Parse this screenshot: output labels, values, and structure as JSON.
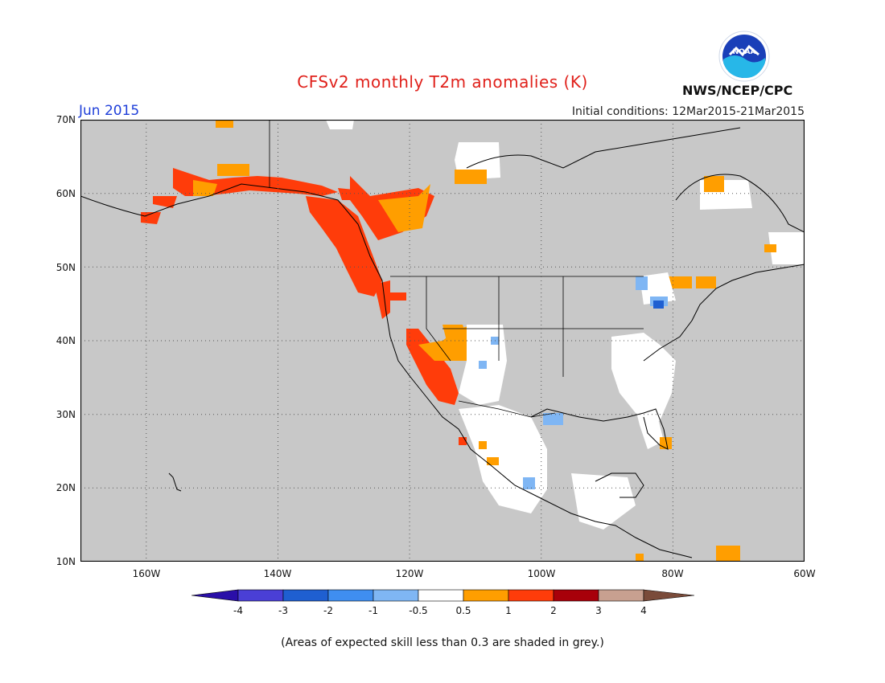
{
  "title": "CFSv2 monthly T2m anomalies (K)",
  "month": "Jun 2015",
  "initial_conditions": "Initial conditions: 12Mar2015-21Mar2015",
  "agency": "NWS/NCEP/CPC",
  "logo_text": "NOAA",
  "footnote": "(Areas of expected skill less than 0.3 are shaded in grey.)",
  "map": {
    "lon_range": [
      -170,
      -60
    ],
    "lat_range": [
      10,
      70
    ],
    "grid": true,
    "skill_mask_color": "#c8c8c8"
  },
  "lat_labels": [
    "70N",
    "60N",
    "50N",
    "40N",
    "30N",
    "20N",
    "10N"
  ],
  "lon_labels": [
    "160W",
    "140W",
    "120W",
    "100W",
    "80W",
    "60W"
  ],
  "colorbar": {
    "labels": [
      "-4",
      "-3",
      "-2",
      "-1",
      "-0.5",
      "0.5",
      "1",
      "2",
      "3",
      "4"
    ],
    "colors": [
      "#2a0fa8",
      "#4a3fd6",
      "#1f5fd1",
      "#3f8ef0",
      "#7fb6f4",
      "#ffffff",
      "#ff9e00",
      "#ff3c0a",
      "#a8000a",
      "#c8a090",
      "#7a4b3a"
    ]
  },
  "anomaly_regions": [
    {
      "name": "Alaska coast and Gulf of Alaska",
      "category": "1 to 2"
    },
    {
      "name": "Pacific Northwest coast",
      "category": "1 to 2"
    },
    {
      "name": "Western Canada interior",
      "category": "0.5 to 2"
    },
    {
      "name": "Southwest US",
      "category": "0.5 to 2"
    },
    {
      "name": "Southern Rockies",
      "category": "-0.5 to 0.5 with small cool spots"
    },
    {
      "name": "Eastern US",
      "category": "-0.5 to 0.5"
    },
    {
      "name": "Mexico and Central America",
      "category": "-0.5 to 0.5"
    },
    {
      "name": "Great Lakes",
      "category": "-1 to -0.5"
    },
    {
      "name": "Quebec and Labrador",
      "category": "0.5 to 1"
    }
  ]
}
